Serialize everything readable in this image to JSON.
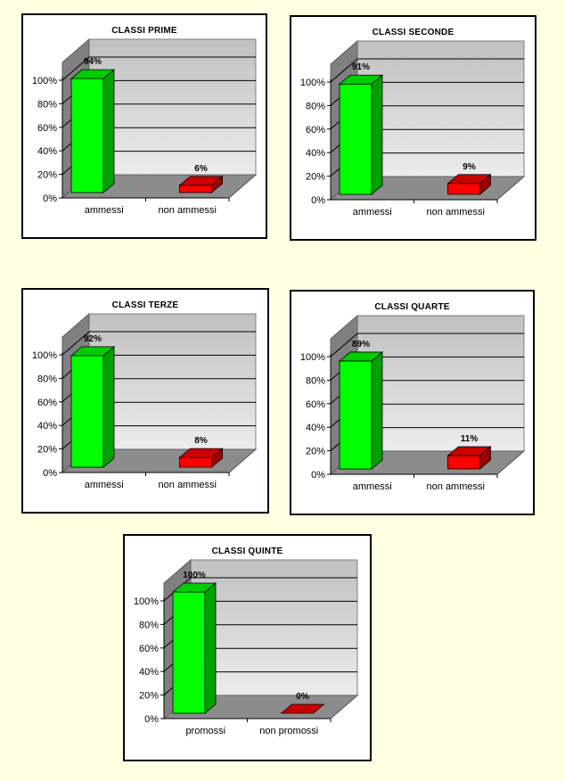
{
  "page": {
    "background": "#ffffe1"
  },
  "colors": {
    "positive_front": "#00ff00",
    "positive_side": "#00a000",
    "positive_top": "#00cc00",
    "negative_front": "#ff0000",
    "negative_side": "#a00000",
    "negative_top": "#cc0000",
    "wall": "#c8c8c8",
    "floor": "#8c8c8c",
    "sidewall": "#808080"
  },
  "charts": [
    {
      "title": "CLASSI PRIME",
      "cat1": "ammessi",
      "cat2": "non ammessi",
      "v1_label": "94%",
      "v2_label": "6%"
    },
    {
      "title": "CLASSI SECONDE",
      "cat1": "ammessi",
      "cat2": "non ammessi",
      "v1_label": "91%",
      "v2_label": "9%"
    },
    {
      "title": "CLASSI TERZE",
      "cat1": "ammessi",
      "cat2": "non ammessi",
      "v1_label": "92%",
      "v2_label": "8%"
    },
    {
      "title": "CLASSI QUARTE",
      "cat1": "ammessi",
      "cat2": "non ammessi",
      "v1_label": "89%",
      "v2_label": "11%"
    },
    {
      "title": "CLASSI QUINTE",
      "cat1": "promossi",
      "cat2": "non promossi",
      "v1_label": "100%",
      "v2_label": "0%"
    }
  ],
  "yticks": [
    "100%",
    "80%",
    "60%",
    "40%",
    "20%",
    "0%"
  ],
  "chart_data": [
    {
      "type": "bar",
      "title": "CLASSI PRIME",
      "categories": [
        "ammessi",
        "non ammessi"
      ],
      "values": [
        94,
        6
      ],
      "xlabel": "",
      "ylabel": "",
      "ylim": [
        0,
        100
      ],
      "yticks": [
        "0%",
        "20%",
        "40%",
        "60%",
        "80%",
        "100%"
      ],
      "grid": true,
      "legend": false,
      "style": "3d"
    },
    {
      "type": "bar",
      "title": "CLASSI SECONDE",
      "categories": [
        "ammessi",
        "non ammessi"
      ],
      "values": [
        91,
        9
      ],
      "xlabel": "",
      "ylabel": "",
      "ylim": [
        0,
        100
      ],
      "yticks": [
        "0%",
        "20%",
        "40%",
        "60%",
        "80%",
        "100%"
      ],
      "grid": true,
      "legend": false,
      "style": "3d"
    },
    {
      "type": "bar",
      "title": "CLASSI TERZE",
      "categories": [
        "ammessi",
        "non ammessi"
      ],
      "values": [
        92,
        8
      ],
      "xlabel": "",
      "ylabel": "",
      "ylim": [
        0,
        100
      ],
      "yticks": [
        "0%",
        "20%",
        "40%",
        "60%",
        "80%",
        "100%"
      ],
      "grid": true,
      "legend": false,
      "style": "3d"
    },
    {
      "type": "bar",
      "title": "CLASSI QUARTE",
      "categories": [
        "ammessi",
        "non ammessi"
      ],
      "values": [
        89,
        11
      ],
      "xlabel": "",
      "ylabel": "",
      "ylim": [
        0,
        100
      ],
      "yticks": [
        "0%",
        "20%",
        "40%",
        "60%",
        "80%",
        "100%"
      ],
      "grid": true,
      "legend": false,
      "style": "3d"
    },
    {
      "type": "bar",
      "title": "CLASSI QUINTE",
      "categories": [
        "promossi",
        "non promossi"
      ],
      "values": [
        100,
        0
      ],
      "xlabel": "",
      "ylabel": "",
      "ylim": [
        0,
        100
      ],
      "yticks": [
        "0%",
        "20%",
        "40%",
        "60%",
        "80%",
        "100%"
      ],
      "grid": true,
      "legend": false,
      "style": "3d"
    }
  ]
}
